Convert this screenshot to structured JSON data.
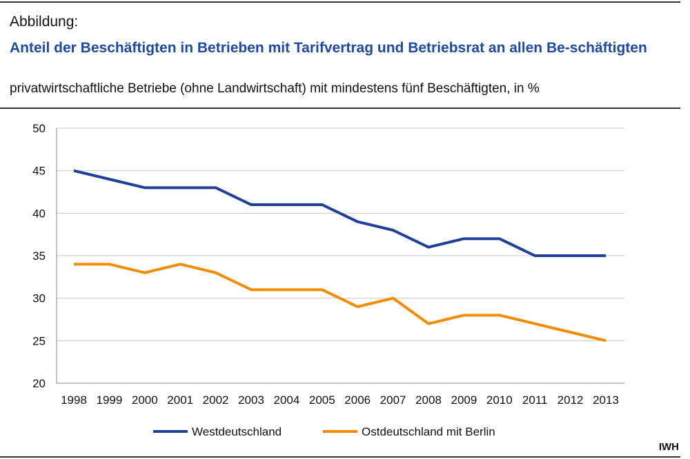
{
  "header": {
    "label": "Abbildung:",
    "title": "Anteil der Beschäftigten in Betrieben mit Tarifvertrag und Betriebsrat an allen Be-schäftigten",
    "subtitle": "privatwirtschaftliche Betriebe (ohne Landwirtschaft) mit mindestens fünf Beschäftigten, in %"
  },
  "source": "IWH",
  "chart_data": {
    "type": "line",
    "title": "Anteil der Beschäftigten in Betrieben mit Tarifvertrag und Betriebsrat an allen Be-schäftigten",
    "x": [
      "1998",
      "1999",
      "2000",
      "2001",
      "2002",
      "2003",
      "2004",
      "2005",
      "2006",
      "2007",
      "2008",
      "2009",
      "2010",
      "2011",
      "2012",
      "2013"
    ],
    "ylim": [
      20,
      50
    ],
    "yticks": [
      20,
      25,
      30,
      35,
      40,
      45,
      50
    ],
    "grid": true,
    "legend": "bottom",
    "series": [
      {
        "name": "Westdeutschland",
        "color": "#1f3f99",
        "values": [
          45,
          44,
          43,
          43,
          43,
          41,
          41,
          41,
          39,
          38,
          36,
          37,
          37,
          35,
          35,
          35
        ]
      },
      {
        "name": "Ostdeutschland mit Berlin",
        "color": "#f28c00",
        "values": [
          34,
          34,
          33,
          34,
          33,
          31,
          31,
          31,
          29,
          30,
          27,
          28,
          28,
          27,
          26,
          25
        ]
      }
    ]
  }
}
